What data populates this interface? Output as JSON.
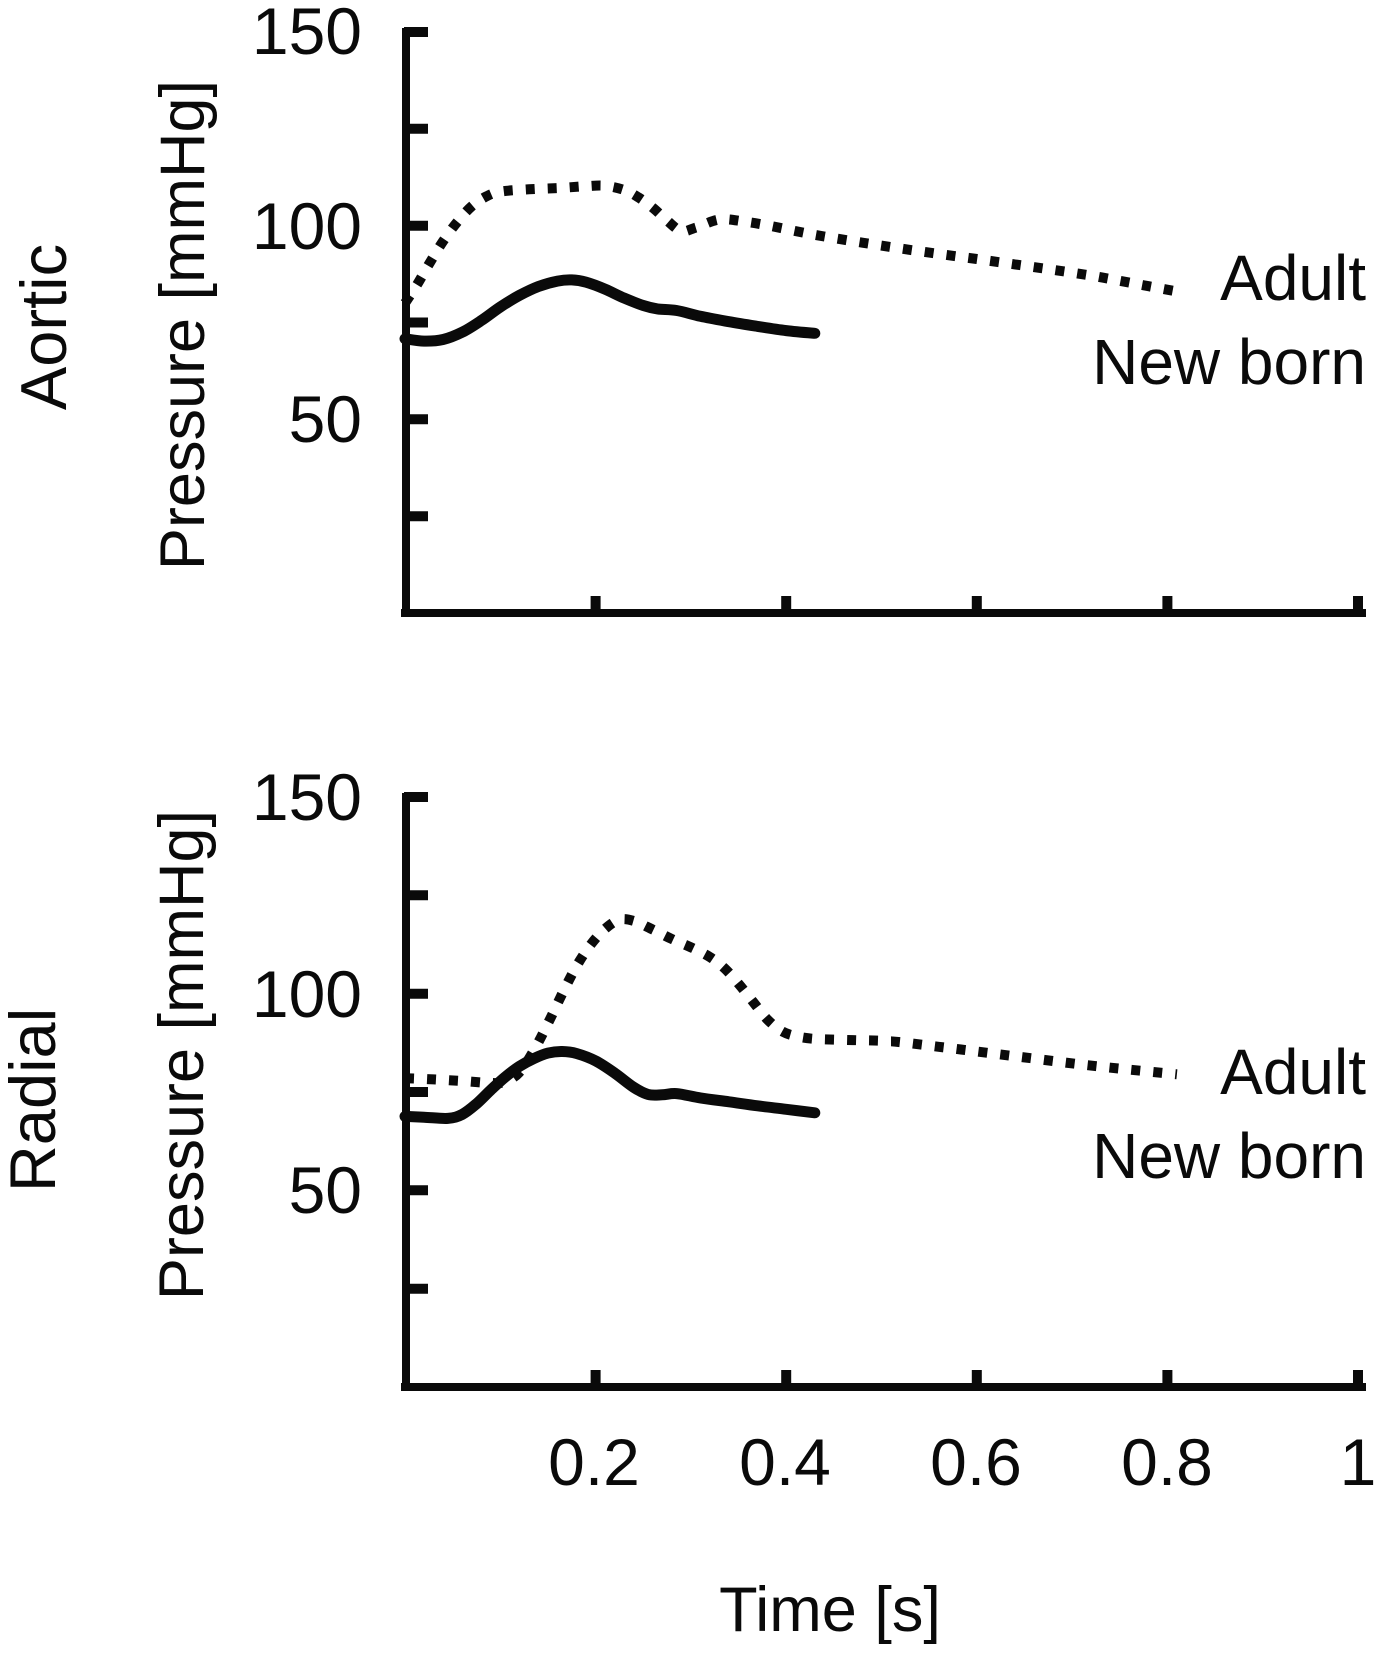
{
  "figure_background": "#ffffff",
  "line_color": "#0a0a0a",
  "xaxis": {
    "label": "Time [s]",
    "tick_labels": [
      "0.2",
      "0.4",
      "0.6",
      "0.8",
      "1"
    ]
  },
  "chart_data": [
    {
      "type": "line",
      "title": "Aortic",
      "ylabel": "Pressure [mmHg]",
      "xlabel": "Time [s]",
      "xlim": [
        0,
        1
      ],
      "ylim": [
        0,
        150
      ],
      "xticks": [
        0.2,
        0.4,
        0.6,
        0.8,
        1
      ],
      "ytick_step": 25,
      "yticks_labeled": [
        150,
        100,
        50
      ],
      "grid": false,
      "legend_position": "right of curve ends",
      "series": [
        {
          "name": "Adult",
          "line_style": "dotted",
          "x": [
            0,
            0.012,
            0.025,
            0.04,
            0.055,
            0.07,
            0.085,
            0.1,
            0.13,
            0.16,
            0.19,
            0.21,
            0.23,
            0.245,
            0.26,
            0.275,
            0.29,
            0.305,
            0.33,
            0.355,
            0.38,
            0.41,
            0.44,
            0.48,
            0.52,
            0.56,
            0.6,
            0.64,
            0.68,
            0.72,
            0.76,
            0.81
          ],
          "y": [
            80,
            84.5,
            90,
            96,
            101,
            105,
            107.5,
            108.8,
            109.4,
            109.7,
            110.2,
            110.3,
            109.2,
            107.3,
            104.6,
            101.3,
            98.6,
            99.5,
            101.6,
            101.1,
            100.1,
            98.6,
            97.2,
            95.6,
            94.1,
            92.7,
            91.4,
            90.0,
            88.6,
            87.1,
            85.3,
            83.0
          ]
        },
        {
          "name": "New born",
          "line_style": "solid",
          "x": [
            0,
            0.02,
            0.04,
            0.06,
            0.08,
            0.1,
            0.12,
            0.14,
            0.16,
            0.175,
            0.19,
            0.21,
            0.23,
            0.25,
            0.265,
            0.285,
            0.31,
            0.34,
            0.37,
            0.4,
            0.43
          ],
          "y": [
            70.8,
            70.2,
            70.6,
            72.5,
            75.5,
            79.0,
            82.0,
            84.3,
            85.7,
            86.0,
            85.4,
            83.6,
            81.3,
            79.4,
            78.5,
            78.1,
            76.6,
            75.2,
            74.0,
            72.9,
            72.2
          ]
        }
      ]
    },
    {
      "type": "line",
      "title": "Radial",
      "ylabel": "Pressure [mmHg]",
      "xlabel": "Time [s]",
      "xlim": [
        0,
        1
      ],
      "ylim": [
        0,
        150
      ],
      "xticks": [
        0.2,
        0.4,
        0.6,
        0.8,
        1
      ],
      "ytick_step": 25,
      "yticks_labeled": [
        150,
        100,
        50
      ],
      "grid": false,
      "legend_position": "right of curve ends",
      "series": [
        {
          "name": "Adult",
          "line_style": "dotted",
          "x": [
            0,
            0.03,
            0.06,
            0.09,
            0.105,
            0.12,
            0.135,
            0.15,
            0.165,
            0.18,
            0.195,
            0.21,
            0.225,
            0.24,
            0.26,
            0.28,
            0.3,
            0.32,
            0.335,
            0.35,
            0.365,
            0.38,
            0.395,
            0.41,
            0.43,
            0.47,
            0.51,
            0.56,
            0.61,
            0.66,
            0.71,
            0.76,
            0.81
          ],
          "y": [
            78.5,
            78.2,
            77.8,
            77.3,
            77.6,
            80.0,
            85.5,
            92.5,
            100.0,
            107.0,
            112.5,
            116.5,
            118.8,
            118.5,
            116.3,
            113.9,
            111.8,
            109.3,
            106.5,
            102.5,
            98.0,
            93.5,
            90.5,
            89.2,
            88.5,
            88.2,
            87.9,
            86.5,
            85.0,
            83.5,
            82.0,
            80.7,
            79.5
          ]
        },
        {
          "name": "New born",
          "line_style": "solid",
          "x": [
            0,
            0.02,
            0.045,
            0.06,
            0.075,
            0.09,
            0.105,
            0.12,
            0.135,
            0.15,
            0.165,
            0.18,
            0.2,
            0.22,
            0.24,
            0.255,
            0.27,
            0.285,
            0.31,
            0.34,
            0.37,
            0.4,
            0.43
          ],
          "y": [
            68.8,
            68.6,
            68.3,
            69.3,
            72.0,
            75.5,
            78.8,
            81.5,
            83.5,
            84.9,
            85.3,
            84.8,
            82.9,
            79.8,
            76.2,
            74.4,
            74.3,
            74.6,
            73.5,
            72.5,
            71.5,
            70.6,
            69.7
          ]
        }
      ]
    }
  ]
}
